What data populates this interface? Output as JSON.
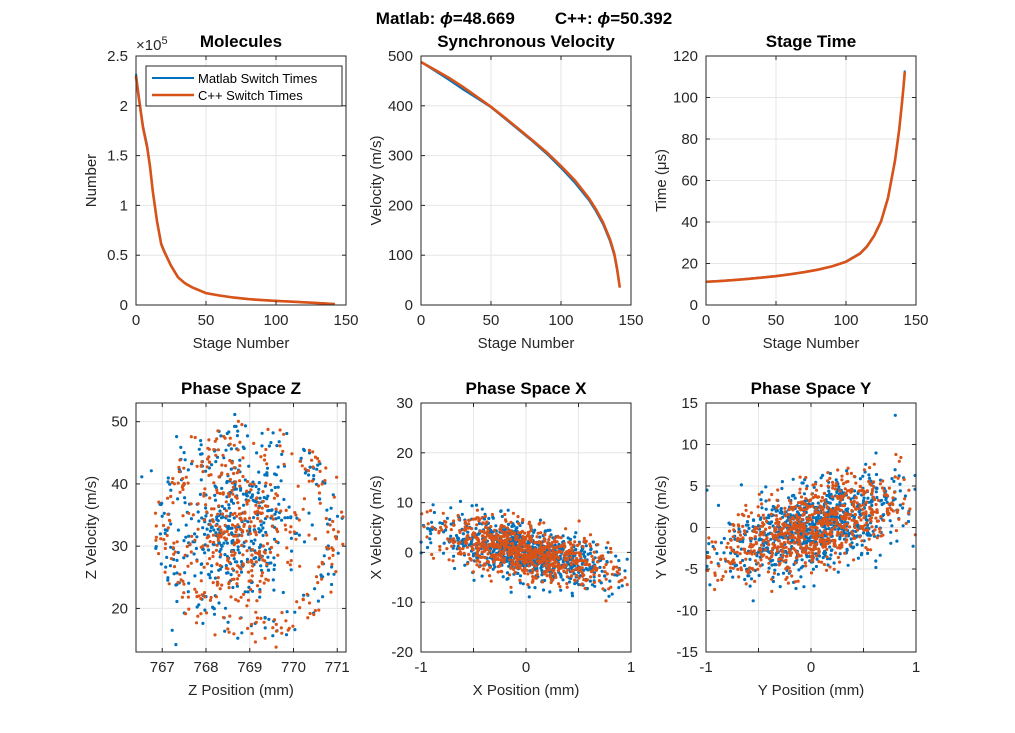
{
  "figure": {
    "title_prefix_a": "Matlab: ",
    "title_phi_a": "ϕ",
    "title_value_a": "=48.669",
    "title_prefix_b": "C++: ",
    "title_phi_b": "ϕ",
    "title_value_b": "=50.392"
  },
  "colors": {
    "matlab": "#0072BD",
    "cpp": "#D95319"
  },
  "legend": {
    "items": [
      "Matlab Switch Times",
      "C++ Switch Times"
    ]
  },
  "chart_data": [
    {
      "id": "molecules",
      "type": "line",
      "title": "Molecules",
      "xlabel": "Stage Number",
      "ylabel": "Number",
      "xlim": [
        0,
        150
      ],
      "ylim": [
        0,
        250000
      ],
      "xticks": [
        0,
        50,
        100,
        150
      ],
      "yticks": [
        0,
        50000,
        100000,
        150000,
        200000,
        250000
      ],
      "yticklabels": [
        "0",
        "0.5",
        "1",
        "1.5",
        "2",
        "2.5"
      ],
      "exponent_label": "×10",
      "exponent_power": "5",
      "grid": true,
      "legend_position": "top-right",
      "series": [
        {
          "name": "Matlab Switch Times",
          "x": [
            0,
            2,
            5,
            8,
            10,
            12,
            15,
            18,
            20,
            25,
            30,
            35,
            40,
            50,
            60,
            70,
            80,
            90,
            100,
            110,
            120,
            130,
            140,
            142
          ],
          "y": [
            232000,
            210000,
            180000,
            160000,
            140000,
            115000,
            85000,
            62000,
            55000,
            40000,
            28000,
            22000,
            18000,
            12000,
            9500,
            7500,
            6000,
            5000,
            4200,
            3500,
            2800,
            2000,
            1200,
            1000
          ]
        },
        {
          "name": "C++ Switch Times",
          "x": [
            0,
            2,
            5,
            8,
            10,
            12,
            15,
            18,
            20,
            25,
            30,
            35,
            40,
            50,
            60,
            70,
            80,
            90,
            100,
            110,
            120,
            130,
            140,
            142
          ],
          "y": [
            230000,
            208000,
            178000,
            158000,
            139000,
            114000,
            84000,
            61000,
            54000,
            39500,
            27800,
            21800,
            17800,
            11900,
            9400,
            7400,
            5900,
            4900,
            4100,
            3400,
            2700,
            1900,
            1100,
            900
          ]
        }
      ]
    },
    {
      "id": "sync-velocity",
      "type": "line",
      "title": "Synchronous Velocity",
      "xlabel": "Stage Number",
      "ylabel": "Velocity (m/s)",
      "xlim": [
        0,
        150
      ],
      "ylim": [
        0,
        500
      ],
      "xticks": [
        0,
        50,
        100,
        150
      ],
      "yticks": [
        0,
        100,
        200,
        300,
        400,
        500
      ],
      "grid": true,
      "series": [
        {
          "name": "Matlab Switch Times",
          "x": [
            0,
            10,
            20,
            30,
            40,
            50,
            60,
            70,
            80,
            90,
            100,
            110,
            120,
            125,
            130,
            135,
            138,
            140,
            142
          ],
          "y": [
            488,
            470,
            452,
            433,
            415,
            397,
            374,
            351,
            328,
            303,
            275,
            245,
            210,
            188,
            162,
            128,
            100,
            70,
            35
          ]
        },
        {
          "name": "C++ Switch Times",
          "x": [
            0,
            10,
            20,
            30,
            40,
            50,
            60,
            70,
            80,
            90,
            100,
            110,
            120,
            125,
            130,
            135,
            138,
            140,
            142
          ],
          "y": [
            488,
            472,
            456,
            438,
            418,
            398,
            376,
            353,
            330,
            306,
            279,
            250,
            214,
            192,
            166,
            132,
            104,
            74,
            35
          ]
        }
      ]
    },
    {
      "id": "stage-time",
      "type": "line",
      "title": "Stage Time",
      "xlabel": "Stage Number",
      "ylabel": "Time (μs)",
      "xlim": [
        0,
        150
      ],
      "ylim": [
        0,
        120
      ],
      "xticks": [
        0,
        50,
        100,
        150
      ],
      "yticks": [
        0,
        20,
        40,
        60,
        80,
        100,
        120
      ],
      "grid": true,
      "series": [
        {
          "name": "Matlab Switch Times",
          "x": [
            0,
            10,
            20,
            30,
            40,
            50,
            60,
            70,
            80,
            90,
            100,
            110,
            115,
            120,
            125,
            130,
            135,
            138,
            140,
            141,
            142
          ],
          "y": [
            11.2,
            11.6,
            12.1,
            12.7,
            13.3,
            14.0,
            14.9,
            15.9,
            17.1,
            18.7,
            21.0,
            25.0,
            28.5,
            33.5,
            40.5,
            52,
            70,
            85,
            98,
            105,
            113
          ]
        },
        {
          "name": "C++ Switch Times",
          "x": [
            0,
            10,
            20,
            30,
            40,
            50,
            60,
            70,
            80,
            90,
            100,
            110,
            115,
            120,
            125,
            130,
            135,
            138,
            140,
            141,
            142
          ],
          "y": [
            11.2,
            11.5,
            12.0,
            12.6,
            13.2,
            13.9,
            14.8,
            15.8,
            17.0,
            18.6,
            20.8,
            24.7,
            28.2,
            33.2,
            40.2,
            51.5,
            69.5,
            84.5,
            97.5,
            104.5,
            112.5
          ]
        }
      ]
    },
    {
      "id": "phase-z",
      "type": "scatter",
      "title": "Phase Space Z",
      "xlabel": "Z Position (mm)",
      "ylabel": "Z Velocity (m/s)",
      "xlim": [
        766.4,
        771.2
      ],
      "ylim": [
        13,
        53
      ],
      "xticks": [
        767,
        768,
        769,
        770,
        771
      ],
      "yticks": [
        20,
        30,
        40,
        50
      ],
      "grid": true,
      "series": [
        {
          "name": "Matlab Switch Times",
          "points": 500,
          "center": [
            768.7,
            33
          ],
          "spread": [
            0.65,
            6.5
          ],
          "ring": [
            769.0,
            32,
            2.0,
            16
          ]
        },
        {
          "name": "C++ Switch Times",
          "points": 500,
          "center": [
            768.7,
            33
          ],
          "spread": [
            0.65,
            6.5
          ],
          "ring": [
            769.0,
            32,
            2.0,
            16
          ]
        }
      ]
    },
    {
      "id": "phase-x",
      "type": "scatter",
      "title": "Phase Space X",
      "xlabel": "X Position (mm)",
      "ylabel": "X Velocity (m/s)",
      "xlim": [
        -1,
        1
      ],
      "ylim": [
        -20,
        30
      ],
      "xticks": [
        -1,
        -0.5,
        0,
        0.5,
        1
      ],
      "xticklabels": [
        "-1",
        "",
        "0",
        "",
        "1"
      ],
      "yticks": [
        -20,
        -10,
        0,
        10,
        20,
        30
      ],
      "grid": true,
      "series": [
        {
          "name": "Matlab Switch Times",
          "points": 800,
          "slope": -4.5,
          "spread": [
            0.42,
            2.6
          ]
        },
        {
          "name": "C++ Switch Times",
          "points": 800,
          "slope": -4.5,
          "spread": [
            0.42,
            2.6
          ]
        }
      ]
    },
    {
      "id": "phase-y",
      "type": "scatter",
      "title": "Phase Space Y",
      "xlabel": "Y Position (mm)",
      "ylabel": "Y Velocity (m/s)",
      "xlim": [
        -1,
        1
      ],
      "ylim": [
        -15,
        15
      ],
      "xticks": [
        -1,
        -0.5,
        0,
        0.5,
        1
      ],
      "xticklabels": [
        "-1",
        "",
        "0",
        "",
        "1"
      ],
      "yticks": [
        -15,
        -10,
        -5,
        0,
        5,
        10,
        15
      ],
      "grid": true,
      "series": [
        {
          "name": "Matlab Switch Times",
          "points": 800,
          "slope": 3.5,
          "spread": [
            0.42,
            2.5
          ]
        },
        {
          "name": "C++ Switch Times",
          "points": 800,
          "slope": 3.5,
          "spread": [
            0.42,
            2.5
          ]
        }
      ]
    }
  ]
}
